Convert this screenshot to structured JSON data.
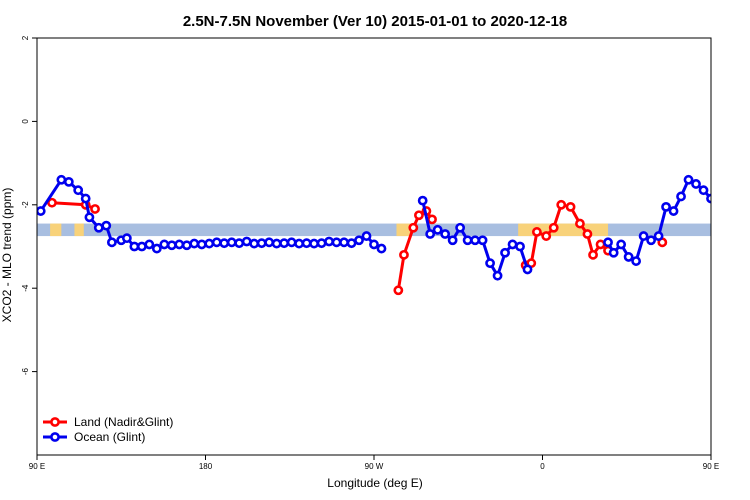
{
  "chart_data": {
    "type": "line",
    "title": "2.5N-7.5N November (Ver 10)   2015-01-01 to 2020-12-18",
    "xlabel": "Longitude (deg E)",
    "ylabel": "XCO2 - MLO trend (ppm)",
    "xlim": [
      90,
      450
    ],
    "ylim": [
      -8,
      2
    ],
    "x_ticks": [
      {
        "value": 90,
        "label": "90 E"
      },
      {
        "value": 180,
        "label": "180"
      },
      {
        "value": 270,
        "label": "90 W"
      },
      {
        "value": 360,
        "label": "0"
      },
      {
        "value": 450,
        "label": "90 E"
      },
      {
        "value": 540,
        "label": "180"
      }
    ],
    "y_ticks": [
      {
        "value": 2,
        "label": "2"
      },
      {
        "value": 0,
        "label": "0"
      },
      {
        "value": -2,
        "label": "-2"
      },
      {
        "value": -4,
        "label": "-4"
      },
      {
        "value": -6,
        "label": "-6"
      }
    ],
    "grid": false,
    "legend_position": "bottom-left",
    "colors": {
      "land": "#ff0000",
      "ocean": "#0000ee",
      "ocean_band": "#a8bee0",
      "land_band": "#f8d27a"
    },
    "band": {
      "ymin": -2.75,
      "ymax": -2.45
    },
    "land_band_segments": [
      [
        97,
        103
      ],
      [
        110,
        115
      ],
      [
        282,
        290
      ],
      [
        347,
        355
      ],
      [
        355,
        395
      ],
      [
        457,
        462
      ],
      [
        466,
        470
      ]
    ],
    "series": [
      {
        "name": "Land (Nadir&Glint)",
        "color": "#ff0000",
        "segments": [
          [
            [
              98,
              -1.95
            ],
            [
              116,
              -2.0
            ],
            [
              121,
              -2.1
            ]
          ],
          [
            [
              283,
              -4.05
            ],
            [
              286,
              -3.2
            ],
            [
              291,
              -2.55
            ],
            [
              294,
              -2.25
            ],
            [
              298,
              -2.15
            ],
            [
              301,
              -2.35
            ]
          ],
          [
            [
              351,
              -3.45
            ],
            [
              354,
              -3.4
            ],
            [
              357,
              -2.65
            ],
            [
              362,
              -2.75
            ],
            [
              366,
              -2.55
            ],
            [
              370,
              -2.0
            ],
            [
              375,
              -2.05
            ],
            [
              380,
              -2.45
            ],
            [
              384,
              -2.7
            ],
            [
              387,
              -3.2
            ],
            [
              391,
              -2.95
            ],
            [
              395,
              -3.1
            ]
          ],
          [
            [
              424,
              -2.9
            ]
          ],
          [
            [
              456,
              -1.95
            ],
            [
              465,
              -1.6
            ],
            [
              469,
              -2.05
            ],
            [
              474,
              -2.1
            ]
          ]
        ]
      },
      {
        "name": "Ocean (Glint)",
        "color": "#0000ee",
        "segments": [
          [
            [
              92,
              -2.15
            ],
            [
              103,
              -1.4
            ],
            [
              107,
              -1.45
            ],
            [
              112,
              -1.65
            ],
            [
              116,
              -1.85
            ],
            [
              118,
              -2.3
            ],
            [
              123,
              -2.55
            ],
            [
              127,
              -2.5
            ],
            [
              130,
              -2.9
            ],
            [
              135,
              -2.85
            ],
            [
              138,
              -2.8
            ],
            [
              142,
              -3.0
            ],
            [
              146,
              -3.0
            ],
            [
              150,
              -2.95
            ],
            [
              154,
              -3.05
            ],
            [
              158,
              -2.95
            ],
            [
              162,
              -2.97
            ],
            [
              166,
              -2.95
            ],
            [
              170,
              -2.97
            ],
            [
              174,
              -2.93
            ],
            [
              178,
              -2.95
            ],
            [
              182,
              -2.93
            ],
            [
              186,
              -2.9
            ],
            [
              190,
              -2.92
            ],
            [
              194,
              -2.9
            ],
            [
              198,
              -2.92
            ],
            [
              202,
              -2.88
            ],
            [
              206,
              -2.93
            ],
            [
              210,
              -2.92
            ],
            [
              214,
              -2.9
            ],
            [
              218,
              -2.93
            ],
            [
              222,
              -2.92
            ],
            [
              226,
              -2.9
            ],
            [
              230,
              -2.93
            ],
            [
              234,
              -2.92
            ],
            [
              238,
              -2.93
            ],
            [
              242,
              -2.92
            ],
            [
              246,
              -2.88
            ],
            [
              250,
              -2.9
            ],
            [
              254,
              -2.9
            ],
            [
              258,
              -2.92
            ],
            [
              262,
              -2.85
            ],
            [
              266,
              -2.75
            ],
            [
              270,
              -2.95
            ],
            [
              274,
              -3.05
            ]
          ],
          [
            [
              296,
              -1.9
            ],
            [
              300,
              -2.7
            ],
            [
              304,
              -2.6
            ],
            [
              308,
              -2.7
            ],
            [
              312,
              -2.85
            ],
            [
              316,
              -2.55
            ],
            [
              320,
              -2.85
            ],
            [
              324,
              -2.85
            ],
            [
              328,
              -2.85
            ],
            [
              332,
              -3.4
            ],
            [
              336,
              -3.7
            ],
            [
              340,
              -3.15
            ],
            [
              344,
              -2.95
            ],
            [
              348,
              -3.0
            ],
            [
              352,
              -3.55
            ]
          ],
          [
            [
              395,
              -2.9
            ],
            [
              398,
              -3.15
            ],
            [
              402,
              -2.95
            ],
            [
              406,
              -3.25
            ],
            [
              410,
              -3.35
            ],
            [
              414,
              -2.75
            ],
            [
              418,
              -2.85
            ],
            [
              422,
              -2.75
            ],
            [
              426,
              -2.05
            ],
            [
              430,
              -2.15
            ],
            [
              434,
              -1.8
            ],
            [
              438,
              -1.4
            ],
            [
              442,
              -1.5
            ],
            [
              446,
              -1.65
            ],
            [
              450,
              -1.85
            ],
            [
              454,
              -2.35
            ],
            [
              458,
              -2.55
            ],
            [
              462,
              -2.5
            ],
            [
              466,
              -2.9
            ],
            [
              470,
              -2.8
            ],
            [
              474,
              -2.8
            ],
            [
              478,
              -3.0
            ],
            [
              482,
              -2.97
            ],
            [
              486,
              -2.95
            ],
            [
              490,
              -3.05
            ],
            [
              494,
              -2.95
            ],
            [
              498,
              -2.97
            ]
          ]
        ]
      }
    ]
  }
}
